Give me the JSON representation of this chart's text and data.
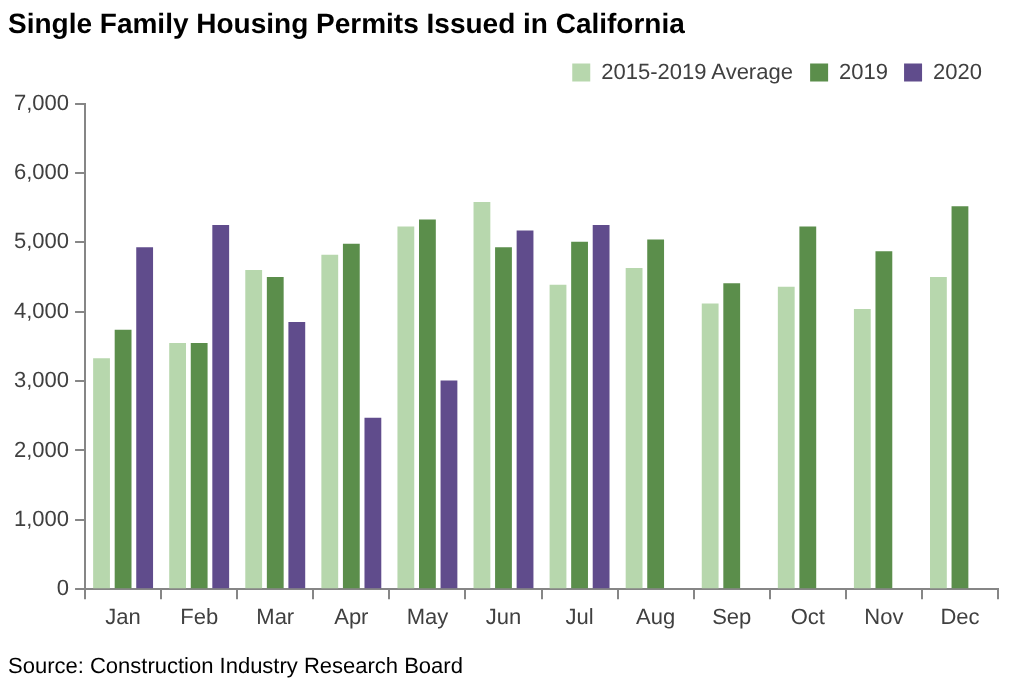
{
  "chart_data": {
    "type": "bar",
    "title": "Single Family Housing Permits Issued in California",
    "categories": [
      "Jan",
      "Feb",
      "Mar",
      "Apr",
      "May",
      "Jun",
      "Jul",
      "Aug",
      "Sep",
      "Oct",
      "Nov",
      "Dec"
    ],
    "series": [
      {
        "name": "2015-2019 Average",
        "color": "#b7d7ad",
        "values": [
          3330,
          3550,
          4600,
          4820,
          5230,
          5580,
          4390,
          4630,
          4120,
          4360,
          4040,
          4500
        ]
      },
      {
        "name": "2019",
        "color": "#5b8e4b",
        "values": [
          3740,
          3550,
          4500,
          4980,
          5330,
          4930,
          5010,
          5040,
          4410,
          5230,
          4870,
          5520
        ]
      },
      {
        "name": "2020",
        "color": "#604c8c",
        "values": [
          4930,
          5250,
          3850,
          2470,
          3010,
          5170,
          5250,
          null,
          null,
          null,
          null,
          null
        ]
      }
    ],
    "ylim": [
      0,
      7000
    ],
    "yticks": [
      {
        "value": 0,
        "label": "0"
      },
      {
        "value": 1000,
        "label": "1,000"
      },
      {
        "value": 2000,
        "label": "2,000"
      },
      {
        "value": 3000,
        "label": "3,000"
      },
      {
        "value": 4000,
        "label": "4,000"
      },
      {
        "value": 5000,
        "label": "5,000"
      },
      {
        "value": 6000,
        "label": "6,000"
      },
      {
        "value": 7000,
        "label": "7,000"
      }
    ],
    "grid": false,
    "legend": "top right",
    "annotations": [
      "Source: Construction Industry Research Board"
    ]
  }
}
